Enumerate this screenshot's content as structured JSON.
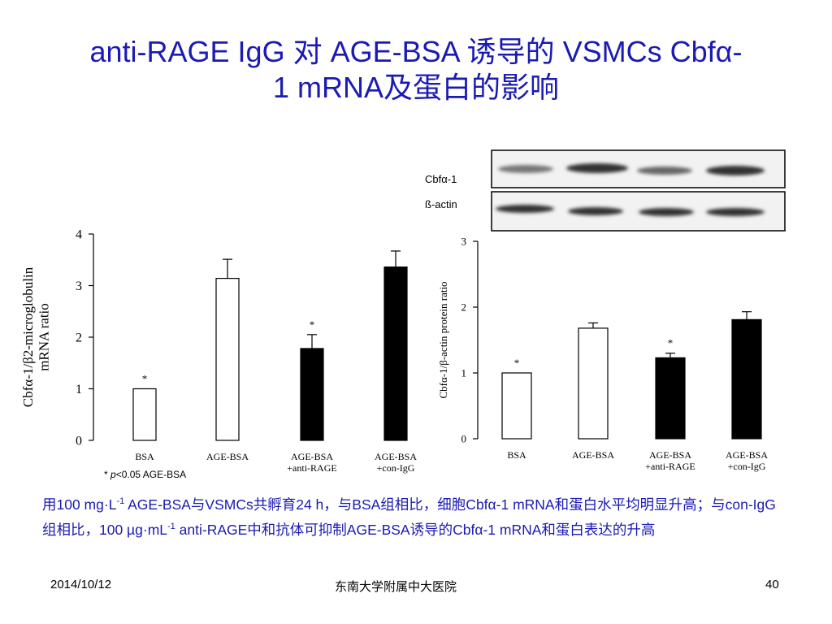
{
  "title": {
    "line1": "anti-RAGE IgG 对 AGE-BSA 诱导的 VSMCs Cbfα-",
    "line2": "1 mRNA及蛋白的影响"
  },
  "blot": {
    "label_target": "Cbfα-1",
    "label_control": "ß-actin"
  },
  "significance_note": {
    "star": "* ",
    "p": "p",
    "rest": "<0.05 AGE-BSA"
  },
  "caption": {
    "p1": "用100 mg·L",
    "sup1": "-1",
    "p2": " AGE-BSA与VSMCs共孵育24 h，与BSA组相比，细胞Cbfα-1 mRNA和蛋白水平均明显升高；与con-IgG组相比，100 µg·mL",
    "sup2": "-1",
    "p3": " anti-RAGE中和抗体可抑制AGE-BSA诱导的Cbfα-1 mRNA和蛋白表达的升高"
  },
  "footer": {
    "date": "2014/10/12",
    "org": "东南大学附属中大医院",
    "page": "40"
  },
  "colors": {
    "title": "#1a1ab4",
    "open_bar": "#ffffff",
    "filled_bar": "#000000"
  },
  "chart_data": [
    {
      "type": "bar",
      "title": "",
      "xlabel": "",
      "ylabel_line1": "Cbfα-1/β2-microglobulin",
      "ylabel_line2": "mRNA ratio",
      "ylim": [
        0,
        4
      ],
      "yticks": [
        0,
        1,
        2,
        3,
        4
      ],
      "categories": [
        {
          "line1": "BSA",
          "line2": ""
        },
        {
          "line1": "AGE-BSA",
          "line2": ""
        },
        {
          "line1": "AGE-BSA",
          "line2": "+anti-RAGE"
        },
        {
          "line1": "AGE-BSA",
          "line2": "+con-IgG"
        }
      ],
      "values": [
        1.0,
        3.14,
        1.78,
        3.36
      ],
      "errors": [
        0,
        0.37,
        0.27,
        0.31
      ],
      "fills": [
        "open",
        "open",
        "filled",
        "filled"
      ],
      "significance": [
        "*",
        "",
        "*",
        ""
      ]
    },
    {
      "type": "bar",
      "title": "",
      "xlabel": "",
      "ylabel_line1": "Cbfα-1/β-actin protein ratio",
      "ylabel_line2": "",
      "ylim": [
        0,
        3
      ],
      "yticks": [
        0,
        1,
        2,
        3
      ],
      "categories": [
        {
          "line1": "BSA",
          "line2": ""
        },
        {
          "line1": "AGE-BSA",
          "line2": ""
        },
        {
          "line1": "AGE-BSA",
          "line2": "+anti-RAGE"
        },
        {
          "line1": "AGE-BSA",
          "line2": "+con-IgG"
        }
      ],
      "values": [
        1.0,
        1.68,
        1.23,
        1.81
      ],
      "errors": [
        0,
        0.08,
        0.07,
        0.12
      ],
      "fills": [
        "open",
        "open",
        "filled",
        "filled"
      ],
      "significance": [
        "*",
        "",
        "*",
        ""
      ]
    }
  ]
}
